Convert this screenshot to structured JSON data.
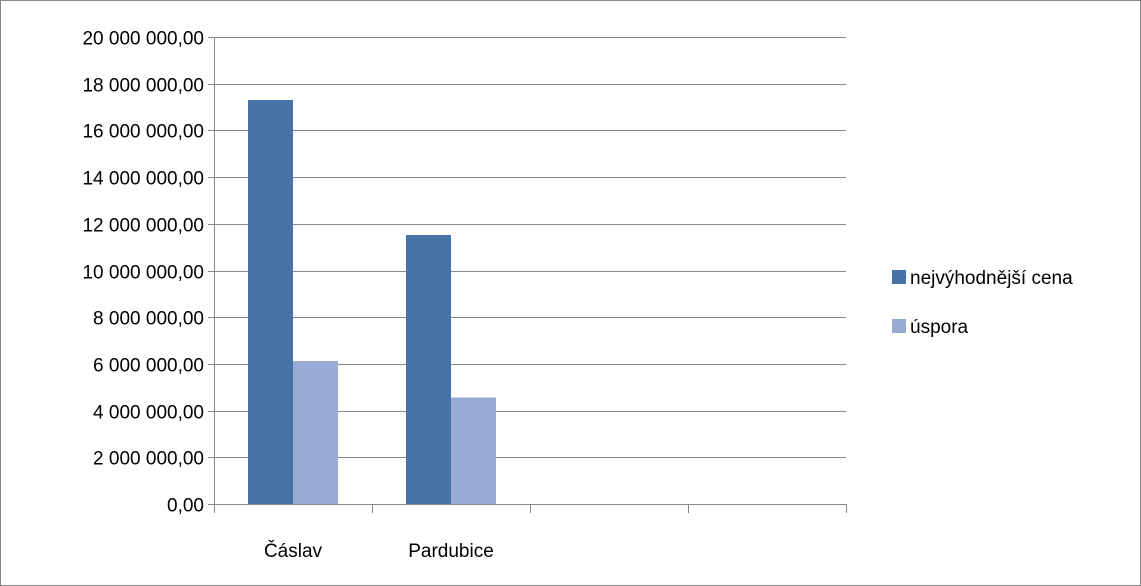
{
  "chart_data": {
    "type": "bar",
    "categories": [
      "Čáslav",
      "Pardubice",
      "",
      ""
    ],
    "series": [
      {
        "name": "nejvýhodnější cena",
        "values": [
          17300000,
          11520000,
          null,
          null
        ],
        "color": "#4572A7"
      },
      {
        "name": "úspora",
        "values": [
          6120000,
          4560000,
          null,
          null
        ],
        "color": "#99ABD3"
      }
    ],
    "ylim": [
      0,
      20000000
    ],
    "y_tick_labels": [
      "0,00",
      "2 000 000,00",
      "4 000 000,00",
      "6 000 000,00",
      "8 000 000,00",
      "10 000 000,00",
      "12 000 000,00",
      "14 000 000,00",
      "16 000 000,00",
      "18 000 000,00",
      "20 000 000,00"
    ],
    "grid": true,
    "legend_position": "right",
    "title": "",
    "xlabel": "",
    "ylabel": ""
  }
}
